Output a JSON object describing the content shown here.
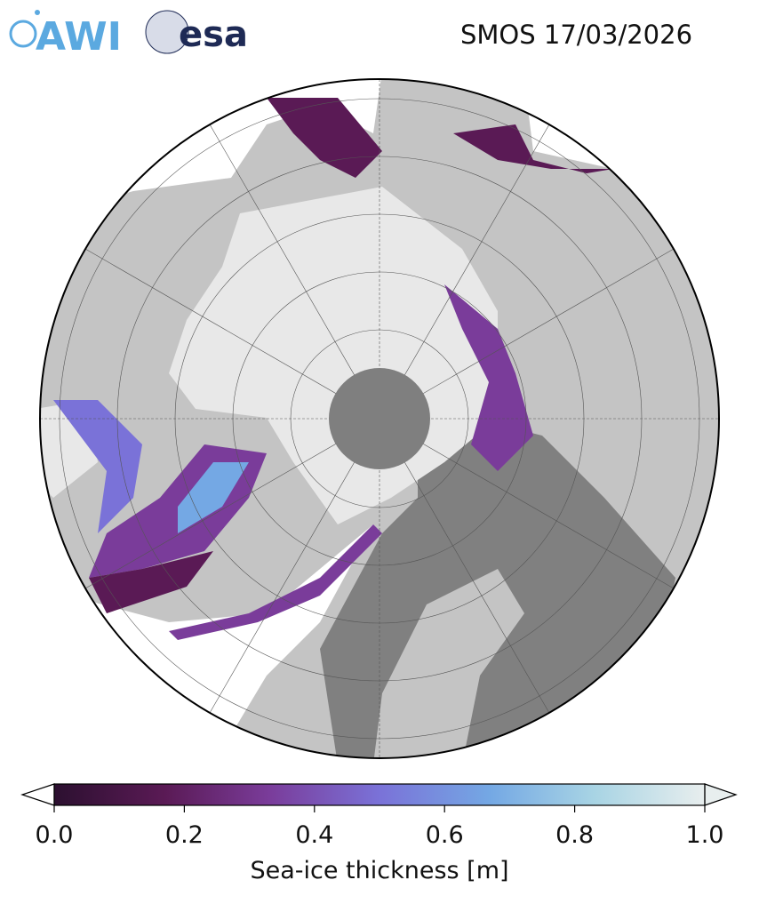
{
  "title": "SMOS 17/03/2026",
  "logos": {
    "awi": "AWI",
    "esa": "esa"
  },
  "map": {
    "projection": "north-polar-stereographic",
    "colors": {
      "ocean": "#ffffff",
      "land_light": "#c4c4c4",
      "land_dark": "#808080",
      "thick_ice": "#e8e8e8",
      "pole_hole": "#7f7f7f"
    }
  },
  "colorbar": {
    "label": "Sea-ice thickness [m]",
    "ticks": [
      "0.0",
      "0.2",
      "0.4",
      "0.6",
      "0.8",
      "1.0"
    ],
    "range": [
      0.0,
      1.0
    ],
    "extend": "both",
    "colors": [
      "#2c1030",
      "#5a1a55",
      "#7a3c9a",
      "#7a72d8",
      "#74a8e4",
      "#a8d4e4",
      "#e8eeee"
    ]
  }
}
